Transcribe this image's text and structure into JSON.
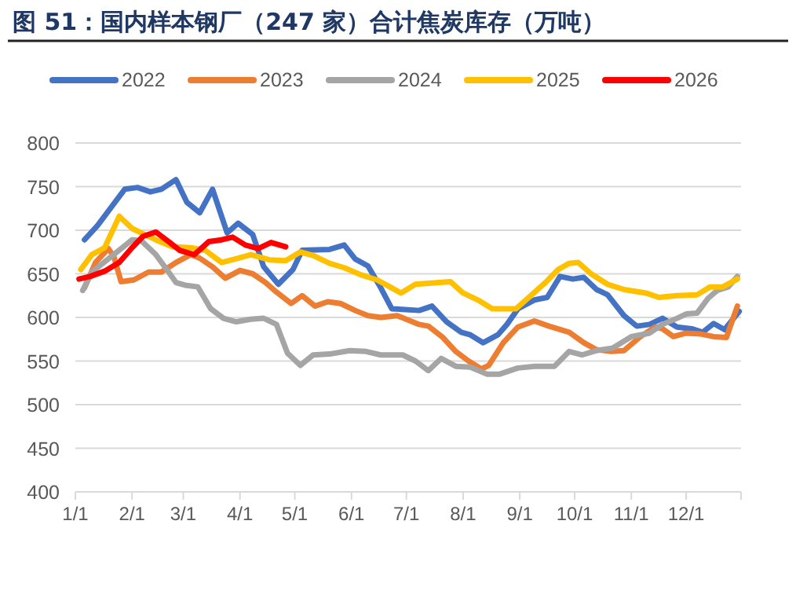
{
  "chart_data": {
    "type": "line",
    "title": "图 51：国内样本钢厂（247 家）合计焦炭库存（万吨）",
    "xlim": [
      "--01-01",
      "--12-31"
    ],
    "xticks": [
      {
        "value": "--01-01",
        "label": "1/1"
      },
      {
        "value": "--02-01",
        "label": "2/1"
      },
      {
        "value": "--03-01",
        "label": "3/1"
      },
      {
        "value": "--04-01",
        "label": "4/1"
      },
      {
        "value": "--05-01",
        "label": "5/1"
      },
      {
        "value": "--06-01",
        "label": "6/1"
      },
      {
        "value": "--07-01",
        "label": "7/1"
      },
      {
        "value": "--08-01",
        "label": "8/1"
      },
      {
        "value": "--09-01",
        "label": "9/1"
      },
      {
        "value": "--10-01",
        "label": "10/1"
      },
      {
        "value": "--11-01",
        "label": "11/1"
      },
      {
        "value": "--12-01",
        "label": "12/1"
      }
    ],
    "ylim": [
      400,
      800
    ],
    "yticks": [
      400,
      450,
      500,
      550,
      600,
      650,
      700,
      750,
      800
    ],
    "grid": "y",
    "legend": "top",
    "marker": "none",
    "line_style": "solid",
    "series": [
      {
        "name": "2022",
        "color": "#4472c4",
        "x": [
          "--01-06",
          "--01-13",
          "--01-28",
          "--02-04",
          "--02-11",
          "--02-17",
          "--02-25",
          "--03-03",
          "--03-10",
          "--03-17",
          "--03-25",
          "--03-31",
          "--04-08",
          "--04-14",
          "--04-22",
          "--04-30",
          "--05-05",
          "--05-20",
          "--05-28",
          "--06-03",
          "--06-10",
          "--06-17",
          "--06-23",
          "--07-08",
          "--07-15",
          "--07-23",
          "--07-31",
          "--08-05",
          "--08-12",
          "--08-20",
          "--08-25",
          "--08-31",
          "--09-09",
          "--09-16",
          "--09-23",
          "--09-30",
          "--10-06",
          "--10-13",
          "--10-19",
          "--10-28",
          "--11-04",
          "--11-11",
          "--11-18",
          "--11-26",
          "--12-04",
          "--12-10",
          "--12-16",
          "--12-22",
          "--12-30"
        ],
        "values": [
          689,
          705,
          747,
          749,
          744,
          747,
          758,
          732,
          720,
          747,
          697,
          708,
          695,
          658,
          638,
          655,
          677,
          678,
          683,
          667,
          659,
          634,
          610,
          608,
          613,
          595,
          583,
          580,
          571,
          580,
          592,
          610,
          620,
          623,
          647,
          644,
          646,
          632,
          626,
          602,
          590,
          592,
          599,
          589,
          587,
          583,
          593,
          586,
          607
        ]
      },
      {
        "name": "2023",
        "color": "#ed7d31",
        "x": [
          "--01-06",
          "--01-12",
          "--01-19",
          "--01-22",
          "--01-26",
          "--02-02",
          "--02-10",
          "--02-17",
          "--02-25",
          "--03-05",
          "--03-10",
          "--03-17",
          "--03-24",
          "--04-01",
          "--04-08",
          "--04-15",
          "--04-21",
          "--04-29",
          "--05-05",
          "--05-12",
          "--05-19",
          "--05-26",
          "--06-03",
          "--06-10",
          "--06-17",
          "--06-26",
          "--07-08",
          "--07-13",
          "--07-21",
          "--07-28",
          "--08-04",
          "--08-11",
          "--08-15",
          "--08-23",
          "--08-31",
          "--09-09",
          "--09-17",
          "--09-28",
          "--10-06",
          "--10-13",
          "--10-21",
          "--10-28",
          "--11-06",
          "--11-14",
          "--11-18",
          "--11-24",
          "--12-01",
          "--12-09",
          "--12-16",
          "--12-23",
          "--12-29"
        ],
        "values": [
          634,
          663,
          679,
          670,
          641,
          643,
          652,
          652,
          663,
          672,
          668,
          658,
          645,
          654,
          650,
          640,
          629,
          616,
          625,
          613,
          618,
          616,
          608,
          602,
          600,
          602,
          592,
          590,
          577,
          561,
          550,
          541,
          545,
          571,
          589,
          596,
          590,
          583,
          571,
          563,
          561,
          562,
          578,
          589,
          587,
          578,
          582,
          581,
          578,
          577,
          613
        ]
      },
      {
        "name": "2024",
        "color": "#a5a5a5",
        "x": [
          "--01-05",
          "--01-10",
          "--01-22",
          "--02-01",
          "--02-06",
          "--02-14",
          "--02-21",
          "--02-25",
          "--03-02",
          "--03-09",
          "--03-16",
          "--03-23",
          "--03-30",
          "--04-07",
          "--04-14",
          "--04-21",
          "--04-27",
          "--05-04",
          "--05-11",
          "--05-20",
          "--05-31",
          "--06-09",
          "--06-17",
          "--06-29",
          "--07-06",
          "--07-13",
          "--07-20",
          "--07-28",
          "--08-05",
          "--08-14",
          "--08-21",
          "--08-31",
          "--09-09",
          "--09-20",
          "--09-28",
          "--10-05",
          "--10-13",
          "--10-22",
          "--11-01",
          "--11-11",
          "--11-18",
          "--11-26",
          "--12-01",
          "--12-07",
          "--12-13",
          "--12-18",
          "--12-24",
          "--12-29"
        ],
        "values": [
          631,
          652,
          672,
          689,
          688,
          672,
          652,
          640,
          637,
          635,
          610,
          599,
          595,
          598,
          599,
          592,
          559,
          545,
          557,
          558,
          562,
          561,
          557,
          557,
          550,
          539,
          553,
          544,
          543,
          535,
          535,
          542,
          544,
          544,
          561,
          557,
          562,
          565,
          578,
          582,
          592,
          599,
          604,
          605,
          622,
          631,
          635,
          647
        ]
      },
      {
        "name": "2025",
        "color": "#ffc000",
        "x": [
          "--01-04",
          "--01-10",
          "--01-17",
          "--01-25",
          "--02-01",
          "--02-08",
          "--02-14",
          "--02-23",
          "--03-05",
          "--03-13",
          "--03-22",
          "--03-31",
          "--04-07",
          "--04-17",
          "--04-26",
          "--05-04",
          "--05-11",
          "--05-20",
          "--05-28",
          "--06-06",
          "--06-15",
          "--06-22",
          "--06-28",
          "--07-06",
          "--07-25",
          "--08-01",
          "--08-10",
          "--08-17",
          "--08-30",
          "--09-06",
          "--09-15",
          "--09-22",
          "--09-28",
          "--10-03",
          "--10-10",
          "--10-19",
          "--10-28",
          "--11-09",
          "--11-16",
          "--11-26",
          "--12-07",
          "--12-14",
          "--12-21",
          "--12-29"
        ],
        "values": [
          655,
          672,
          680,
          716,
          702,
          695,
          689,
          681,
          680,
          677,
          663,
          668,
          672,
          666,
          665,
          675,
          671,
          662,
          657,
          649,
          643,
          635,
          628,
          638,
          641,
          628,
          619,
          610,
          610,
          623,
          640,
          655,
          662,
          663,
          650,
          638,
          632,
          628,
          623,
          625,
          626,
          635,
          635,
          644
        ]
      },
      {
        "name": "2026",
        "color": "#ff0000",
        "x": [
          "--01-03",
          "--01-09",
          "--01-17",
          "--01-25",
          "--02-01",
          "--02-07",
          "--02-14",
          "--02-21",
          "--02-27",
          "--03-07",
          "--03-15",
          "--03-22",
          "--03-28",
          "--04-04",
          "--04-11",
          "--04-18",
          "--04-26"
        ],
        "values": [
          644,
          647,
          653,
          663,
          680,
          693,
          698,
          687,
          677,
          672,
          687,
          689,
          692,
          683,
          679,
          686,
          681
        ]
      }
    ]
  }
}
